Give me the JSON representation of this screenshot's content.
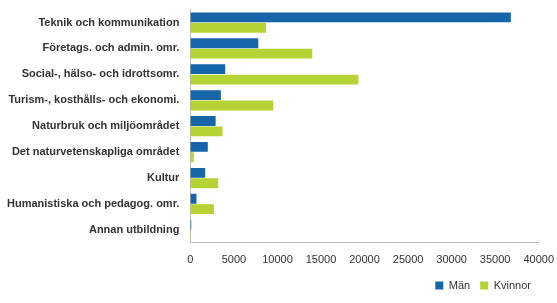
{
  "chart_data": {
    "type": "bar",
    "orientation": "horizontal",
    "categories": [
      "Teknik och kommunikation",
      "Företags. och admin. omr.",
      "Social-, hälso- och idrottsomr.",
      "Turism-, kosthålls- och ekonomi.",
      "Naturbruk och miljöområdet",
      "Det naturvetenskapliga området",
      "Kultur",
      "Humanistiska och pedagog. omr.",
      "Annan utbildning"
    ],
    "series": [
      {
        "name": "Män",
        "color": "#1565a8",
        "values": [
          36800,
          7800,
          4000,
          3500,
          2900,
          2000,
          1700,
          700,
          100
        ]
      },
      {
        "name": "Kvinnor",
        "color": "#b5d334",
        "values": [
          8700,
          14000,
          19300,
          9500,
          3700,
          400,
          3200,
          2700,
          50
        ]
      }
    ],
    "xlim": [
      0,
      40000
    ],
    "xticks": [
      0,
      5000,
      10000,
      15000,
      20000,
      25000,
      30000,
      35000,
      40000
    ],
    "grid": false,
    "legend": "lower right"
  }
}
